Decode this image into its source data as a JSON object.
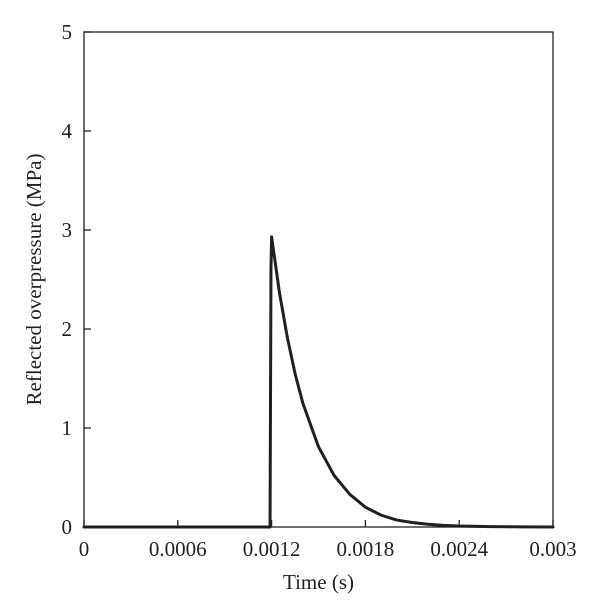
{
  "chart_data": {
    "type": "line",
    "title": "",
    "xlabel": "Time (s)",
    "ylabel": "Reflected overpressure (MPa)",
    "xlim": [
      0,
      0.003
    ],
    "ylim": [
      0,
      5
    ],
    "x_ticks": [
      0,
      0.0006,
      0.0012,
      0.0018,
      0.0024,
      0.003
    ],
    "x_tick_labels": [
      "0",
      "0.0006",
      "0.0012",
      "0.0018",
      "0.0024",
      "0.003"
    ],
    "y_ticks": [
      0,
      1,
      2,
      3,
      4,
      5
    ],
    "y_tick_labels": [
      "0",
      "1",
      "2",
      "3",
      "4",
      "5"
    ],
    "grid": false,
    "legend": "none",
    "line_color": "#231f20",
    "series": [
      {
        "x": [
          0,
          0.00119,
          0.001196,
          0.0012,
          0.00125,
          0.0013,
          0.00135,
          0.0014,
          0.0015,
          0.0016,
          0.0017,
          0.0018,
          0.0019,
          0.002,
          0.0021,
          0.0022,
          0.0023,
          0.0024,
          0.0026,
          0.0028,
          0.003
        ],
        "y": [
          0,
          0,
          2.6,
          2.93,
          2.37,
          1.92,
          1.55,
          1.25,
          0.81,
          0.52,
          0.33,
          0.2,
          0.12,
          0.07,
          0.045,
          0.028,
          0.017,
          0.01,
          0.004,
          0.001,
          0
        ]
      }
    ]
  }
}
